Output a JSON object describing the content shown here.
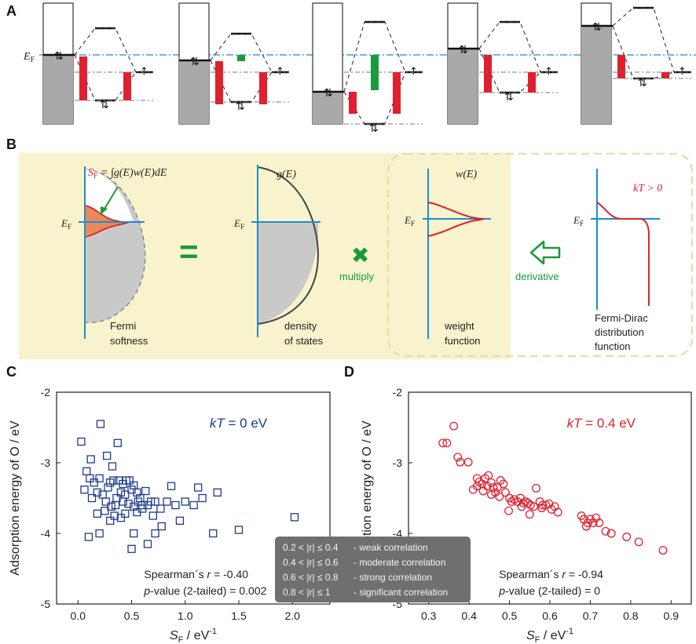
{
  "panels": {
    "a": {
      "letter": "A",
      "ef_label": "E",
      "ef_sub": "F"
    },
    "b": {
      "letter": "B",
      "formula_s": "S",
      "formula_sub": "F",
      "formula_rest": " = ∫g(E)w(E)dE",
      "equals": "=",
      "times": "✖",
      "multiply_label": "multiply",
      "derivative_label": "derivative",
      "g_label": "g(E)",
      "w_label": "w(E)",
      "kt_label": "kT > 0",
      "ef_label": "E",
      "ef_sub": "F",
      "captions": {
        "fermi_softness": [
          "Fermi",
          "softness"
        ],
        "dos": [
          "density",
          "of states"
        ],
        "weight": [
          "weight",
          "function"
        ],
        "fermi_dirac": [
          "Fermi-Dirac",
          "distribution",
          "function"
        ]
      }
    },
    "c": {
      "letter": "C"
    },
    "d": {
      "letter": "D"
    }
  },
  "colors": {
    "blue": "#1e3a8a",
    "red": "#e0202e",
    "green": "#1a9a3a",
    "cyan": "#1b8fd0",
    "yellow": "#f8f3cc"
  },
  "legend": {
    "rows": [
      {
        "range": "0.2 < |r| ≤ 0.4",
        "desc": "- weak correlation"
      },
      {
        "range": "0.4 < |r| ≤ 0.6",
        "desc": "- moderate correlation"
      },
      {
        "range": "0.6 < |r| ≤ 0.8",
        "desc": "- strong correlation"
      },
      {
        "range": "0.8 < |r| ≤ 1",
        "desc": "- significant correlation"
      }
    ]
  },
  "chart_data": [
    {
      "type": "scatter",
      "panel": "C",
      "title": "kT = 0 eV",
      "xlabel": "SF / eV-1",
      "ylabel": "Adsorption energy of O / eV",
      "xlim": [
        -0.2,
        2.35
      ],
      "ylim": [
        -5,
        -2
      ],
      "xticks": [
        "0.0",
        "0.5",
        "1.0",
        "1.5",
        "2.0"
      ],
      "xtick_values": [
        0.0,
        0.5,
        1.0,
        1.5,
        2.0
      ],
      "yticks": [
        "-2",
        "-3",
        "-4",
        "-5"
      ],
      "ytick_values": [
        -2,
        -3,
        -4,
        -5
      ],
      "annotation_r": "Spearman´s r = -0.40",
      "annotation_p": "p-value (2-tailed) = 0.002",
      "marker": "square",
      "color": "#1e3a8a",
      "points": [
        [
          0.03,
          -2.7
        ],
        [
          0.21,
          -2.45
        ],
        [
          0.37,
          -2.72
        ],
        [
          0.12,
          -2.95
        ],
        [
          0.27,
          -2.9
        ],
        [
          0.32,
          -3.05
        ],
        [
          0.08,
          -3.12
        ],
        [
          0.11,
          -3.22
        ],
        [
          0.15,
          -3.28
        ],
        [
          0.2,
          -3.22
        ],
        [
          0.23,
          -3.45
        ],
        [
          0.28,
          -3.35
        ],
        [
          0.3,
          -3.28
        ],
        [
          0.33,
          -3.25
        ],
        [
          0.38,
          -3.25
        ],
        [
          0.42,
          -3.3
        ],
        [
          0.45,
          -3.25
        ],
        [
          0.48,
          -3.25
        ],
        [
          0.52,
          -3.32
        ],
        [
          0.44,
          -3.45
        ],
        [
          0.55,
          -3.42
        ],
        [
          0.58,
          -3.5
        ],
        [
          0.63,
          -3.4
        ],
        [
          0.6,
          -3.6
        ],
        [
          0.65,
          -3.6
        ],
        [
          0.5,
          -3.38
        ],
        [
          0.4,
          -3.42
        ],
        [
          0.36,
          -3.5
        ],
        [
          0.26,
          -3.55
        ],
        [
          0.18,
          -3.42
        ],
        [
          0.13,
          -3.5
        ],
        [
          0.31,
          -3.62
        ],
        [
          0.35,
          -3.6
        ],
        [
          0.42,
          -3.55
        ],
        [
          0.47,
          -3.58
        ],
        [
          0.52,
          -3.62
        ],
        [
          0.56,
          -3.55
        ],
        [
          0.6,
          -3.65
        ],
        [
          0.68,
          -3.55
        ],
        [
          0.72,
          -3.55
        ],
        [
          0.77,
          -3.65
        ],
        [
          0.83,
          -3.55
        ],
        [
          0.87,
          -3.33
        ],
        [
          0.91,
          -3.6
        ],
        [
          1.0,
          -3.55
        ],
        [
          1.08,
          -3.6
        ],
        [
          1.12,
          -3.35
        ],
        [
          1.16,
          -3.5
        ],
        [
          1.3,
          -3.42
        ],
        [
          1.26,
          -4.0
        ],
        [
          1.5,
          -3.95
        ],
        [
          2.02,
          -3.77
        ],
        [
          0.18,
          -3.72
        ],
        [
          0.25,
          -3.68
        ],
        [
          0.34,
          -3.75
        ],
        [
          0.44,
          -3.72
        ],
        [
          0.55,
          -3.7
        ],
        [
          0.7,
          -3.75
        ],
        [
          0.78,
          -3.9
        ],
        [
          0.72,
          -4.0
        ],
        [
          0.52,
          -4.0
        ],
        [
          0.1,
          -4.05
        ],
        [
          0.2,
          -4.0
        ],
        [
          0.5,
          -4.22
        ],
        [
          0.65,
          -4.15
        ],
        [
          0.4,
          -3.78
        ],
        [
          0.3,
          -3.82
        ],
        [
          0.06,
          -3.38
        ],
        [
          0.95,
          -3.82
        ]
      ]
    },
    {
      "type": "scatter",
      "panel": "D",
      "title": "kT = 0.4 eV",
      "xlabel": "SF / eV-1",
      "ylabel": "Adsorption energy of O / eV",
      "xlim": [
        0.25,
        0.95
      ],
      "ylim": [
        -5,
        -2
      ],
      "xticks": [
        "0.3",
        "0.4",
        "0.5",
        "0.6",
        "0.7",
        "0.8",
        "0.9"
      ],
      "xtick_values": [
        0.3,
        0.4,
        0.5,
        0.6,
        0.7,
        0.8,
        0.9
      ],
      "yticks": [
        "-2",
        "-3",
        "-4",
        "-5"
      ],
      "ytick_values": [
        -2,
        -3,
        -4,
        -5
      ],
      "annotation_r": "Spearman´s r = -0.94",
      "annotation_p": "p-value (2-tailed) = 0",
      "marker": "circle",
      "color": "#e0202e",
      "points": [
        [
          0.362,
          -2.48
        ],
        [
          0.335,
          -2.72
        ],
        [
          0.345,
          -2.72
        ],
        [
          0.372,
          -2.92
        ],
        [
          0.378,
          -2.99
        ],
        [
          0.398,
          -2.99
        ],
        [
          0.42,
          -3.22
        ],
        [
          0.425,
          -3.27
        ],
        [
          0.432,
          -3.3
        ],
        [
          0.44,
          -3.22
        ],
        [
          0.448,
          -3.18
        ],
        [
          0.455,
          -3.28
        ],
        [
          0.445,
          -3.33
        ],
        [
          0.46,
          -3.35
        ],
        [
          0.47,
          -3.35
        ],
        [
          0.465,
          -3.42
        ],
        [
          0.478,
          -3.25
        ],
        [
          0.485,
          -3.3
        ],
        [
          0.49,
          -3.42
        ],
        [
          0.5,
          -3.5
        ],
        [
          0.505,
          -3.55
        ],
        [
          0.512,
          -3.52
        ],
        [
          0.52,
          -3.55
        ],
        [
          0.527,
          -3.5
        ],
        [
          0.534,
          -3.57
        ],
        [
          0.54,
          -3.55
        ],
        [
          0.546,
          -3.57
        ],
        [
          0.552,
          -3.6
        ],
        [
          0.56,
          -3.62
        ],
        [
          0.566,
          -3.36
        ],
        [
          0.575,
          -3.55
        ],
        [
          0.582,
          -3.6
        ],
        [
          0.59,
          -3.6
        ],
        [
          0.598,
          -3.58
        ],
        [
          0.604,
          -3.66
        ],
        [
          0.612,
          -3.62
        ],
        [
          0.62,
          -3.7
        ],
        [
          0.55,
          -3.73
        ],
        [
          0.42,
          -3.33
        ],
        [
          0.41,
          -3.38
        ],
        [
          0.435,
          -3.4
        ],
        [
          0.455,
          -3.45
        ],
        [
          0.475,
          -3.48
        ],
        [
          0.498,
          -3.68
        ],
        [
          0.53,
          -3.62
        ],
        [
          0.58,
          -3.64
        ],
        [
          0.678,
          -3.75
        ],
        [
          0.684,
          -3.8
        ],
        [
          0.694,
          -3.85
        ],
        [
          0.7,
          -3.8
        ],
        [
          0.707,
          -3.85
        ],
        [
          0.714,
          -3.78
        ],
        [
          0.722,
          -3.85
        ],
        [
          0.738,
          -3.97
        ],
        [
          0.752,
          -4.0
        ],
        [
          0.79,
          -4.05
        ],
        [
          0.82,
          -4.12
        ],
        [
          0.88,
          -4.24
        ],
        [
          0.69,
          -3.9
        ]
      ]
    }
  ]
}
